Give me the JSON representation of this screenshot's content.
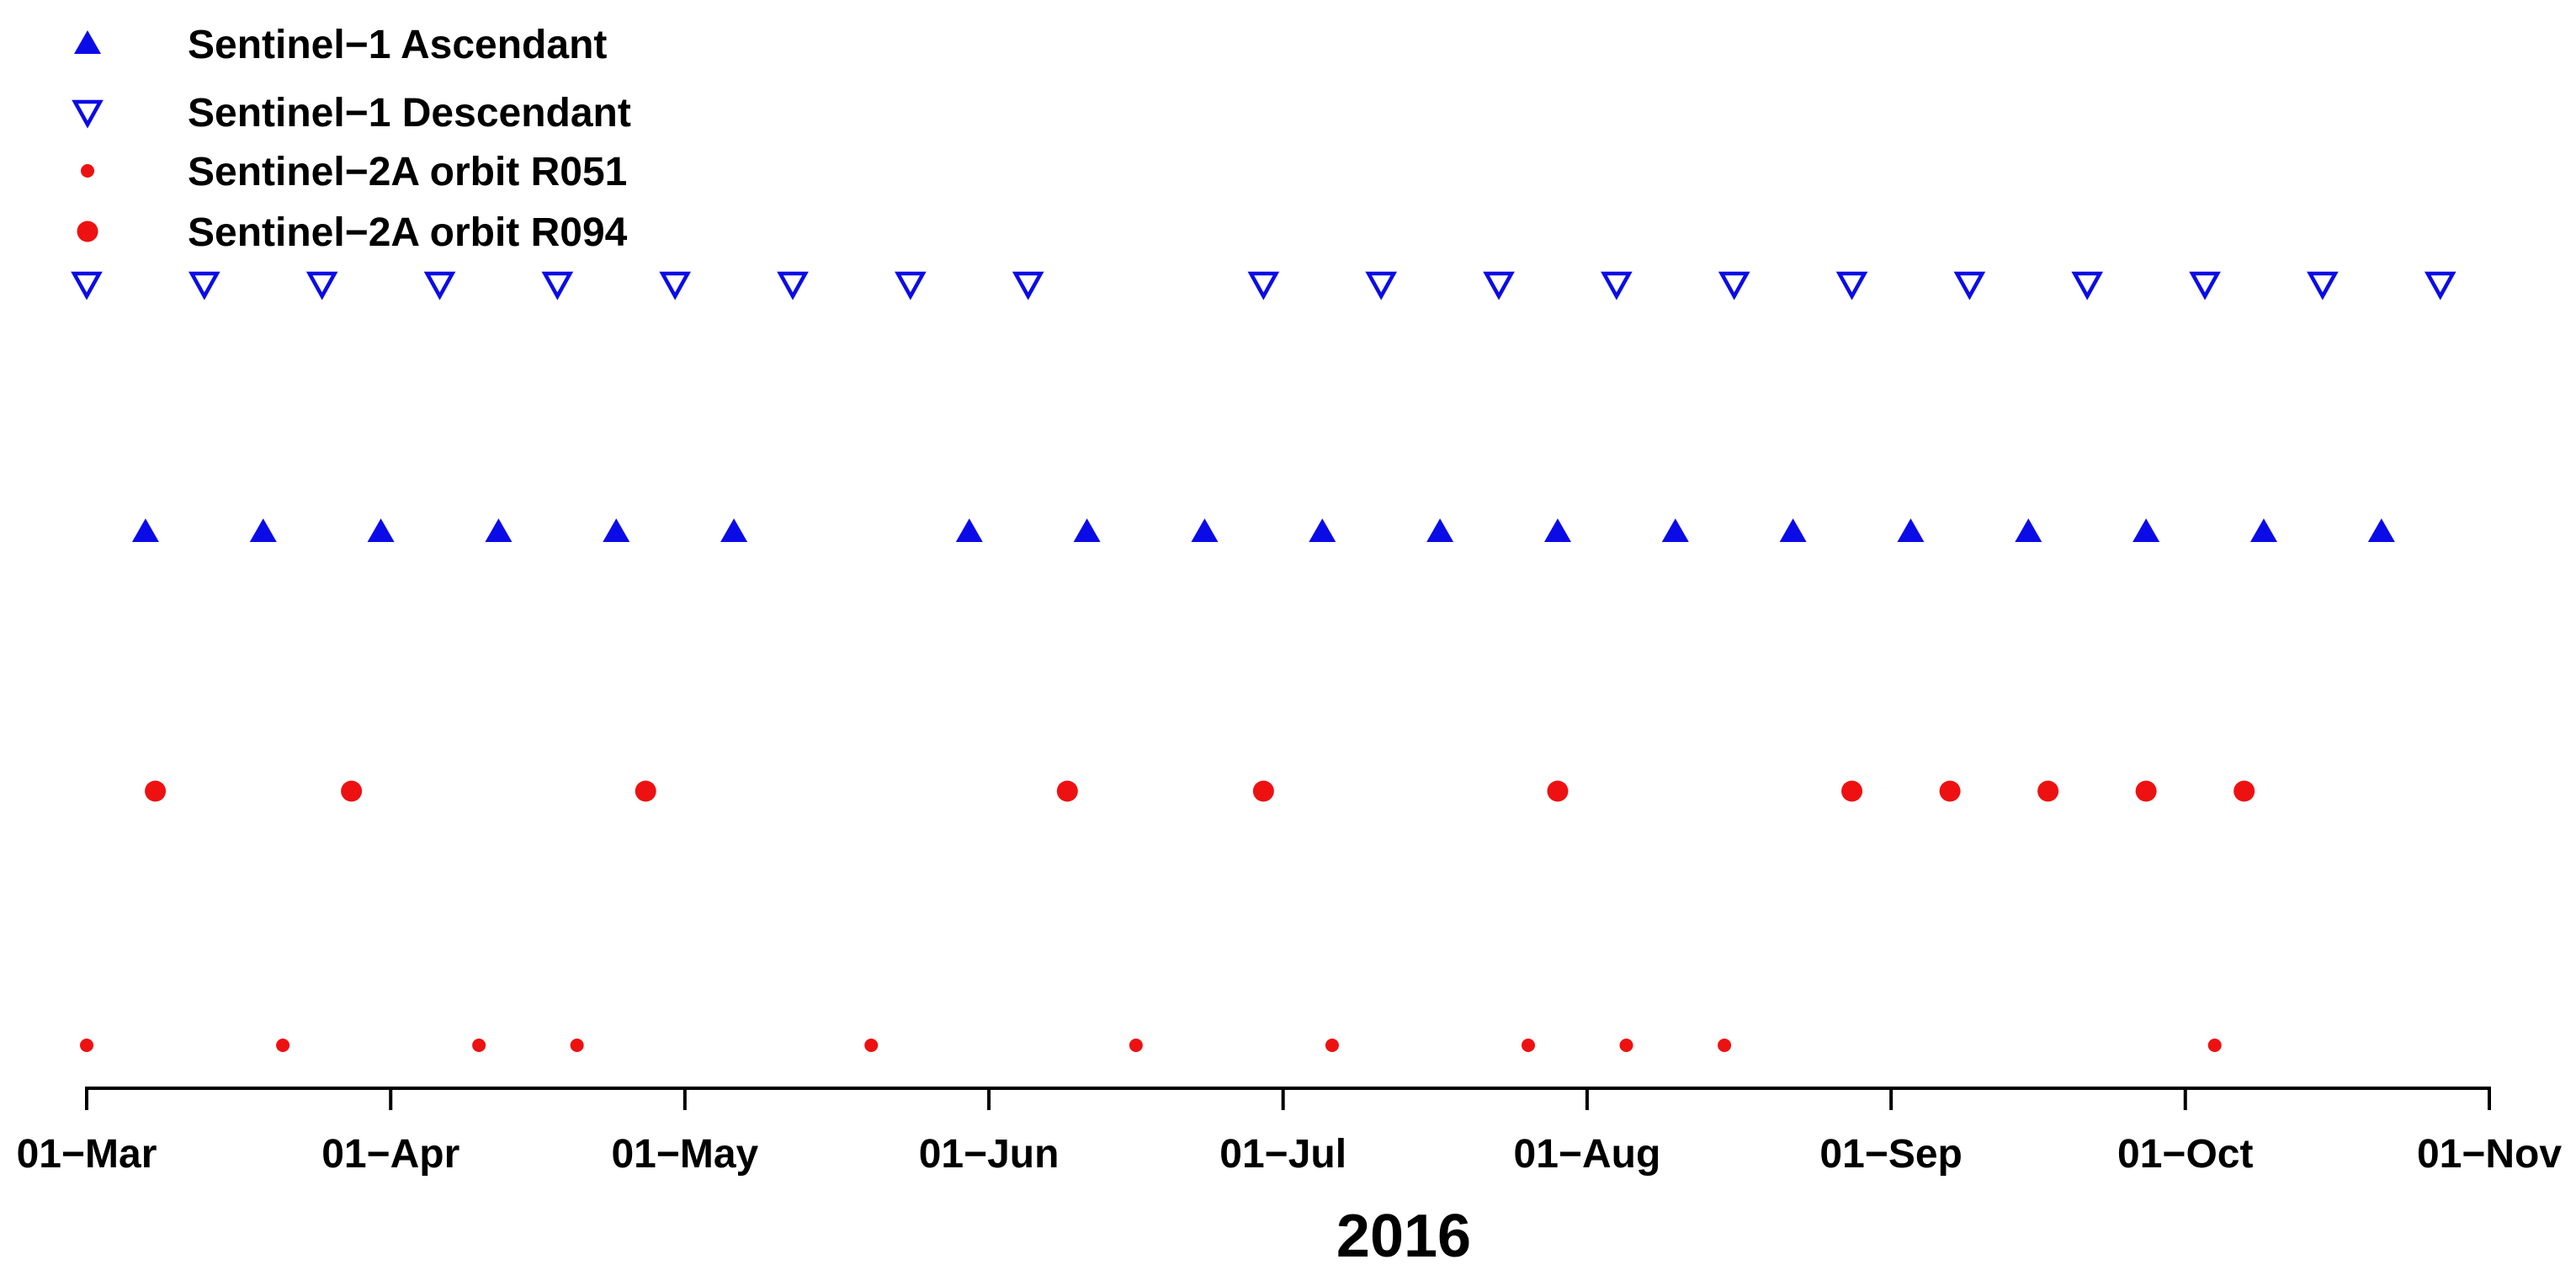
{
  "chart_data": {
    "type": "scatter",
    "title": "",
    "xlabel": "2016",
    "ylabel": "",
    "grid": false,
    "background": "#ffffff",
    "text_color": "#000000",
    "axis_color": "#000000",
    "legend_position": "top-left",
    "x_domain": [
      "2016-03-01",
      "2016-11-01"
    ],
    "x_tick_dates": [
      "2016-03-01",
      "2016-04-01",
      "2016-05-01",
      "2016-06-01",
      "2016-07-01",
      "2016-08-01",
      "2016-09-01",
      "2016-10-01",
      "2016-11-01"
    ],
    "x_tick_labels": [
      "01−Mar",
      "01−Apr",
      "01−May",
      "01−Jun",
      "01−Jul",
      "01−Aug",
      "01−Sep",
      "01−Oct",
      "01−Nov"
    ],
    "legend": [
      {
        "series_id": "s1-ascendant",
        "label": "Sentinel−1 Ascendant"
      },
      {
        "series_id": "s1-descendant",
        "label": "Sentinel−1 Descendant"
      },
      {
        "series_id": "s2a-r051",
        "label": "Sentinel−2A orbit R051"
      },
      {
        "series_id": "s2a-r094",
        "label": "Sentinel−2A orbit R094"
      }
    ],
    "series": [
      {
        "id": "s1-descendant",
        "name": "Sentinel−1 Descendant",
        "marker": "triangle-down-open",
        "color": "#0B0BE8",
        "row": 0,
        "repeat_cycle_days": 12,
        "dates": [
          "2016-03-01",
          "2016-03-13",
          "2016-03-25",
          "2016-04-06",
          "2016-04-18",
          "2016-04-30",
          "2016-05-12",
          "2016-05-24",
          "2016-06-05",
          "2016-06-29",
          "2016-07-11",
          "2016-07-23",
          "2016-08-04",
          "2016-08-16",
          "2016-08-28",
          "2016-09-09",
          "2016-09-21",
          "2016-10-03",
          "2016-10-15",
          "2016-10-27"
        ]
      },
      {
        "id": "s1-ascendant",
        "name": "Sentinel−1 Ascendant",
        "marker": "triangle-up-filled",
        "color": "#0B0BE8",
        "row": 1,
        "repeat_cycle_days": 12,
        "dates": [
          "2016-03-07",
          "2016-03-19",
          "2016-03-31",
          "2016-04-12",
          "2016-04-24",
          "2016-05-06",
          "2016-05-30",
          "2016-06-11",
          "2016-06-23",
          "2016-07-05",
          "2016-07-17",
          "2016-07-29",
          "2016-08-10",
          "2016-08-22",
          "2016-09-03",
          "2016-09-15",
          "2016-09-27",
          "2016-10-09",
          "2016-10-21"
        ]
      },
      {
        "id": "s2a-r094",
        "name": "Sentinel−2A orbit R094",
        "marker": "dot-large",
        "color": "#EE1111",
        "row": 2,
        "dates": [
          "2016-03-08",
          "2016-03-28",
          "2016-04-27",
          "2016-06-09",
          "2016-06-29",
          "2016-07-29",
          "2016-08-28",
          "2016-09-07",
          "2016-09-17",
          "2016-09-27",
          "2016-10-07"
        ]
      },
      {
        "id": "s2a-r051",
        "name": "Sentinel−2A orbit R051",
        "marker": "dot-small",
        "color": "#EE1111",
        "row": 3,
        "dates": [
          "2016-03-01",
          "2016-03-21",
          "2016-04-10",
          "2016-04-20",
          "2016-05-20",
          "2016-06-16",
          "2016-07-06",
          "2016-07-26",
          "2016-08-05",
          "2016-08-15",
          "2016-10-04"
        ]
      }
    ]
  }
}
